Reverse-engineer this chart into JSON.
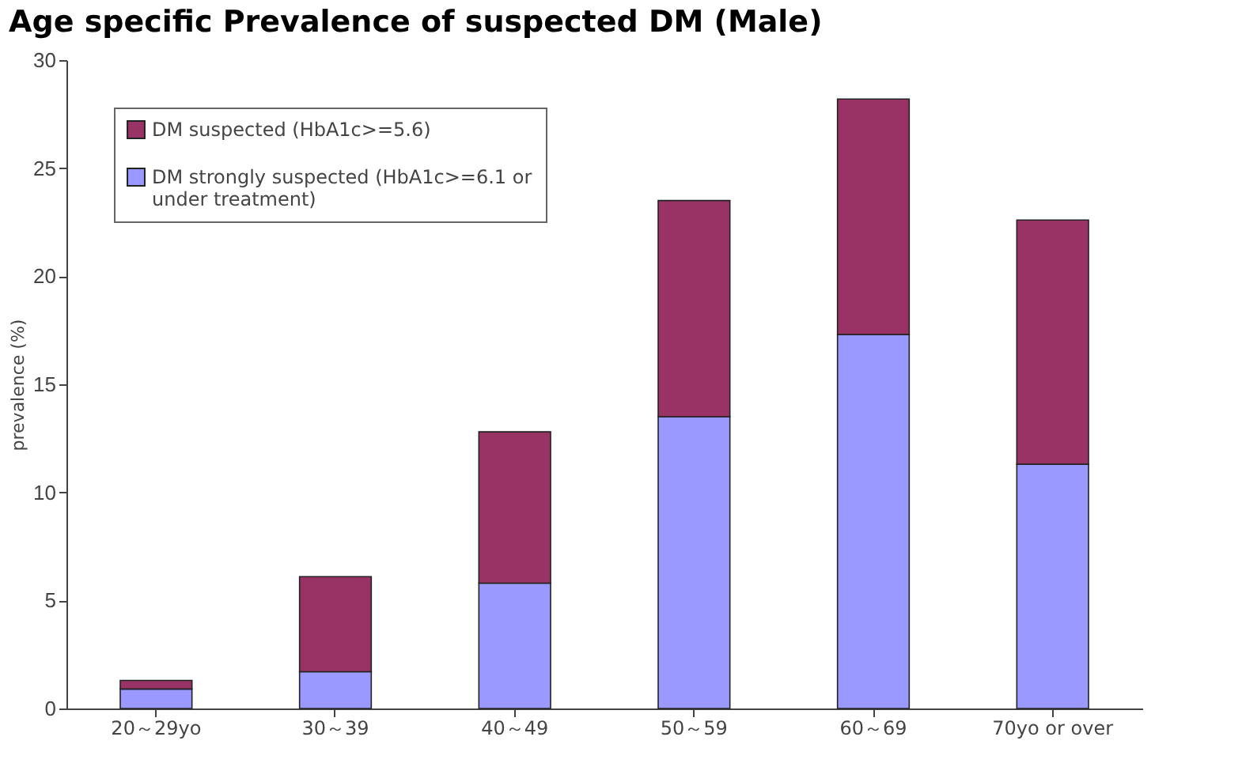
{
  "chart_data": {
    "type": "bar",
    "title": "Age specific Prevalence of suspected DM (Male)",
    "ylabel": "prevalence (%)",
    "categories": [
      "20～29yo",
      "30～39",
      "40～49",
      "50～59",
      "60～69",
      "70yo or over"
    ],
    "stacked": true,
    "series": [
      {
        "name": "DM strongly suspected (HbA1c>=6.1 or under treatment)",
        "color": "#9999ff",
        "values": [
          0.9,
          1.7,
          5.8,
          13.5,
          17.3,
          11.3
        ]
      },
      {
        "name": "DM suspected (HbA1c>=5.6)",
        "color": "#993366",
        "values": [
          0.4,
          4.4,
          7.0,
          10.0,
          10.9,
          11.3
        ]
      }
    ],
    "ylim": [
      0,
      30
    ],
    "yticks": [
      0,
      5,
      10,
      15,
      20,
      25,
      30
    ],
    "grid": false,
    "legend": "top left"
  }
}
